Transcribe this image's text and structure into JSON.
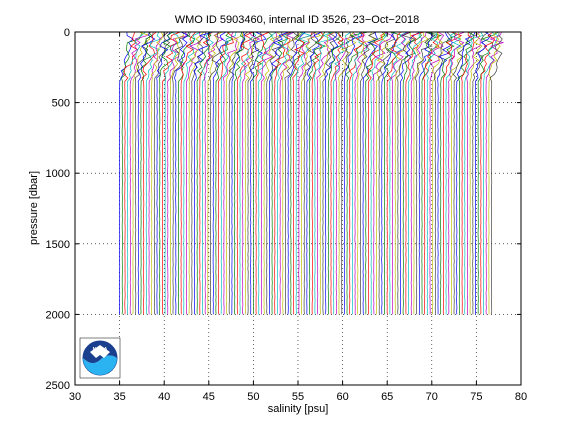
{
  "chart_data": {
    "type": "line",
    "title": "WMO ID 5903460, internal ID 3526, 23−Oct−2018",
    "xlabel": "salinity [psu]",
    "ylabel": "pressure [dbar]",
    "xlim": [
      30,
      80
    ],
    "ylim": [
      0,
      2500
    ],
    "y_reversed": true,
    "grid": "dotted",
    "x_ticks": [
      "30",
      "35",
      "40",
      "45",
      "50",
      "55",
      "60",
      "65",
      "70",
      "75",
      "80"
    ],
    "y_ticks": [
      "0",
      "500",
      "1000",
      "1500",
      "2000",
      "2500"
    ],
    "profile_count": 140,
    "profile_start_salinity": 35.0,
    "profile_step_salinity": 0.3,
    "profile_max_pressure": 2000,
    "series_colors": [
      "#0000ff",
      "#008000",
      "#ff0000",
      "#00bfbf",
      "#bf00bf",
      "#bfbf00",
      "#404040"
    ],
    "logo": "noaa-logo",
    "logo_text": "NOAA"
  }
}
